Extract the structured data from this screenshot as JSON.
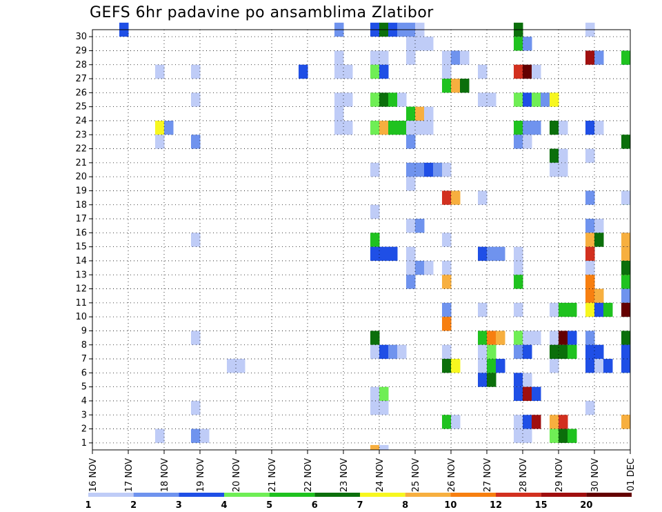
{
  "chart_data": {
    "type": "heatmap",
    "title": "GEFS 6hr padavine po ansamblima Zlatibor",
    "xlabel": "",
    "ylabel": "",
    "x_ticks": [
      "16 NOV",
      "17 NOV",
      "18 NOV",
      "19 NOV",
      "20 NOV",
      "21 NOV",
      "22 NOV",
      "23 NOV",
      "24 NOV",
      "25 NOV",
      "26 NOV",
      "27 NOV",
      "28 NOV",
      "29 NOV",
      "30 NOV",
      "01 DEC"
    ],
    "y_ticks": [
      1,
      2,
      3,
      4,
      5,
      6,
      7,
      8,
      9,
      10,
      11,
      12,
      13,
      14,
      15,
      16,
      17,
      18,
      19,
      20,
      21,
      22,
      23,
      24,
      25,
      26,
      27,
      28,
      29,
      30
    ],
    "grid": true,
    "colorbar": {
      "labels": [
        "1",
        "2",
        "3",
        "4",
        "5",
        "6",
        "7",
        "8",
        "10",
        "12",
        "15",
        "20"
      ],
      "colors": [
        "#bfccf7",
        "#6f93ee",
        "#1f4fe6",
        "#6fee55",
        "#1fc21f",
        "#0b6f0b",
        "#f7f71f",
        "#f7af3f",
        "#f77f10",
        "#d2301f",
        "#a00f0f",
        "#640000"
      ]
    },
    "cells": [
      [
        1,
        30,
        2
      ],
      [
        7,
        30,
        1
      ],
      [
        8,
        30,
        2
      ],
      [
        8,
        30,
        5
      ],
      [
        8,
        30,
        2
      ],
      [
        8,
        30,
        1
      ],
      [
        9,
        30,
        1
      ],
      [
        9,
        30,
        0
      ],
      [
        12,
        30,
        5
      ],
      [
        14,
        30,
        0
      ],
      [
        9,
        29,
        0
      ],
      [
        9,
        29,
        0
      ],
      [
        9,
        29,
        0
      ],
      [
        12,
        29,
        4
      ],
      [
        12,
        29,
        1
      ],
      [
        7,
        28,
        0
      ],
      [
        8,
        28,
        0
      ],
      [
        8,
        28,
        0
      ],
      [
        9,
        28,
        0
      ],
      [
        10,
        28,
        0
      ],
      [
        10,
        28,
        1
      ],
      [
        10,
        28,
        0
      ],
      [
        14,
        28,
        10
      ],
      [
        14,
        28,
        1
      ],
      [
        15,
        28,
        2
      ],
      [
        15,
        28,
        4
      ],
      [
        2,
        27,
        0
      ],
      [
        3,
        27,
        0
      ],
      [
        6,
        27,
        2
      ],
      [
        7,
        27,
        0
      ],
      [
        7,
        27,
        0
      ],
      [
        8,
        27,
        3
      ],
      [
        8,
        27,
        2
      ],
      [
        10,
        27,
        0
      ],
      [
        11,
        27,
        0
      ],
      [
        12,
        27,
        9
      ],
      [
        12,
        27,
        11
      ],
      [
        12,
        27,
        0
      ],
      [
        10,
        26,
        4
      ],
      [
        10,
        26,
        7
      ],
      [
        10,
        26,
        5
      ],
      [
        3,
        25,
        0
      ],
      [
        7,
        25,
        0
      ],
      [
        7,
        25,
        0
      ],
      [
        8,
        25,
        3
      ],
      [
        8,
        25,
        5
      ],
      [
        8,
        25,
        4
      ],
      [
        8,
        25,
        0
      ],
      [
        11,
        25,
        0
      ],
      [
        11,
        25,
        0
      ],
      [
        12,
        25,
        3
      ],
      [
        12,
        25,
        2
      ],
      [
        12,
        25,
        3
      ],
      [
        12,
        25,
        1
      ],
      [
        12,
        25,
        6
      ],
      [
        7,
        24,
        0
      ],
      [
        9,
        24,
        4
      ],
      [
        9,
        24,
        7
      ],
      [
        9,
        24,
        0
      ],
      [
        2,
        23,
        6
      ],
      [
        2,
        23,
        1
      ],
      [
        7,
        23,
        0
      ],
      [
        7,
        23,
        0
      ],
      [
        8,
        23,
        3
      ],
      [
        8,
        23,
        7
      ],
      [
        8,
        23,
        4
      ],
      [
        8,
        23,
        4
      ],
      [
        8,
        23,
        1
      ],
      [
        8,
        23,
        0
      ],
      [
        9,
        23,
        0
      ],
      [
        9,
        23,
        0
      ],
      [
        9,
        23,
        0
      ],
      [
        12,
        23,
        4
      ],
      [
        12,
        23,
        1
      ],
      [
        12,
        23,
        1
      ],
      [
        13,
        23,
        5
      ],
      [
        13,
        23,
        0
      ],
      [
        14,
        23,
        2
      ],
      [
        14,
        23,
        0
      ],
      [
        2,
        22,
        0
      ],
      [
        3,
        22,
        1
      ],
      [
        9,
        22,
        1
      ],
      [
        12,
        22,
        1
      ],
      [
        12,
        22,
        0
      ],
      [
        15,
        22,
        3
      ],
      [
        15,
        22,
        5
      ],
      [
        13,
        21,
        5
      ],
      [
        13,
        21,
        0
      ],
      [
        14,
        21,
        0
      ],
      [
        8,
        20,
        0
      ],
      [
        9,
        20,
        1
      ],
      [
        9,
        20,
        1
      ],
      [
        9,
        20,
        2
      ],
      [
        9,
        20,
        1
      ],
      [
        9,
        20,
        0
      ],
      [
        13,
        20,
        0
      ],
      [
        13,
        20,
        0
      ],
      [
        9,
        19,
        0
      ],
      [
        10,
        18,
        9
      ],
      [
        10,
        18,
        7
      ],
      [
        11,
        18,
        0
      ],
      [
        14,
        18,
        1
      ],
      [
        15,
        18,
        4
      ],
      [
        15,
        18,
        0
      ],
      [
        8,
        17,
        0
      ],
      [
        9,
        16,
        0
      ],
      [
        9,
        16,
        1
      ],
      [
        14,
        16,
        1
      ],
      [
        14,
        16,
        0
      ],
      [
        3,
        15,
        0
      ],
      [
        8,
        15,
        4
      ],
      [
        10,
        15,
        0
      ],
      [
        14,
        15,
        7
      ],
      [
        14,
        15,
        5
      ],
      [
        15,
        15,
        2
      ],
      [
        15,
        15,
        7
      ],
      [
        8,
        14,
        2
      ],
      [
        8,
        14,
        2
      ],
      [
        8,
        14,
        2
      ],
      [
        9,
        14,
        0
      ],
      [
        11,
        14,
        2
      ],
      [
        11,
        14,
        1
      ],
      [
        11,
        14,
        1
      ],
      [
        12,
        14,
        0
      ],
      [
        14,
        14,
        9
      ],
      [
        15,
        14,
        9
      ],
      [
        15,
        14,
        2
      ],
      [
        15,
        14,
        7
      ],
      [
        9,
        13,
        0
      ],
      [
        9,
        13,
        1
      ],
      [
        9,
        13,
        0
      ],
      [
        10,
        13,
        0
      ],
      [
        12,
        13,
        0
      ],
      [
        14,
        13,
        0
      ],
      [
        15,
        13,
        0
      ],
      [
        15,
        13,
        6
      ],
      [
        15,
        13,
        5
      ],
      [
        9,
        12,
        1
      ],
      [
        10,
        12,
        7
      ],
      [
        12,
        12,
        4
      ],
      [
        14,
        12,
        8
      ],
      [
        15,
        12,
        5
      ],
      [
        15,
        12,
        9
      ],
      [
        15,
        12,
        4
      ],
      [
        14,
        11,
        8
      ],
      [
        14,
        11,
        7
      ],
      [
        15,
        11,
        1
      ],
      [
        10,
        10,
        1
      ],
      [
        11,
        10,
        0
      ],
      [
        12,
        10,
        0
      ],
      [
        13,
        10,
        0
      ],
      [
        13,
        10,
        4
      ],
      [
        13,
        10,
        4
      ],
      [
        14,
        10,
        6
      ],
      [
        14,
        10,
        2
      ],
      [
        14,
        10,
        4
      ],
      [
        15,
        10,
        1
      ],
      [
        15,
        10,
        2
      ],
      [
        15,
        10,
        6
      ],
      [
        15,
        10,
        11
      ],
      [
        10,
        9,
        8
      ],
      [
        3,
        8,
        0
      ],
      [
        8,
        8,
        5
      ],
      [
        11,
        8,
        4
      ],
      [
        11,
        8,
        8
      ],
      [
        11,
        8,
        7
      ],
      [
        12,
        8,
        3
      ],
      [
        12,
        8,
        0
      ],
      [
        12,
        8,
        0
      ],
      [
        13,
        8,
        0
      ],
      [
        13,
        8,
        11
      ],
      [
        13,
        8,
        2
      ],
      [
        14,
        8,
        1
      ],
      [
        15,
        8,
        3
      ],
      [
        15,
        8,
        5
      ],
      [
        8,
        7,
        0
      ],
      [
        8,
        7,
        2
      ],
      [
        8,
        7,
        1
      ],
      [
        8,
        7,
        0
      ],
      [
        10,
        7,
        0
      ],
      [
        11,
        7,
        0
      ],
      [
        11,
        7,
        3
      ],
      [
        12,
        7,
        1
      ],
      [
        12,
        7,
        2
      ],
      [
        13,
        7,
        5
      ],
      [
        13,
        7,
        5
      ],
      [
        13,
        7,
        4
      ],
      [
        14,
        7,
        2
      ],
      [
        14,
        7,
        2
      ],
      [
        15,
        7,
        2
      ],
      [
        15,
        7,
        2
      ],
      [
        4,
        6,
        0
      ],
      [
        4,
        6,
        0
      ],
      [
        10,
        6,
        5
      ],
      [
        10,
        6,
        6
      ],
      [
        11,
        6,
        0
      ],
      [
        11,
        6,
        4
      ],
      [
        11,
        6,
        2
      ],
      [
        13,
        6,
        0
      ],
      [
        14,
        6,
        2
      ],
      [
        14,
        6,
        0
      ],
      [
        14,
        6,
        2
      ],
      [
        15,
        6,
        3
      ],
      [
        15,
        6,
        2
      ],
      [
        11,
        5,
        2
      ],
      [
        11,
        5,
        5
      ],
      [
        12,
        5,
        2
      ],
      [
        12,
        5,
        0
      ],
      [
        8,
        4,
        0
      ],
      [
        8,
        4,
        3
      ],
      [
        12,
        4,
        2
      ],
      [
        12,
        4,
        10
      ],
      [
        12,
        4,
        2
      ],
      [
        3,
        3,
        0
      ],
      [
        8,
        3,
        0
      ],
      [
        8,
        3,
        0
      ],
      [
        14,
        3,
        0
      ],
      [
        10,
        2,
        4
      ],
      [
        10,
        2,
        0
      ],
      [
        12,
        2,
        0
      ],
      [
        12,
        2,
        2
      ],
      [
        12,
        2,
        10
      ],
      [
        13,
        2,
        7
      ],
      [
        13,
        2,
        9
      ],
      [
        15,
        2,
        8
      ],
      [
        15,
        2,
        7
      ],
      [
        2,
        1,
        0
      ],
      [
        3,
        1,
        1
      ],
      [
        3,
        1,
        0
      ],
      [
        12,
        1,
        0
      ],
      [
        12,
        1,
        0
      ],
      [
        13,
        1,
        3
      ],
      [
        13,
        1,
        5
      ],
      [
        13,
        1,
        4
      ],
      [
        8,
        0,
        7
      ],
      [
        8,
        0,
        0
      ]
    ]
  }
}
